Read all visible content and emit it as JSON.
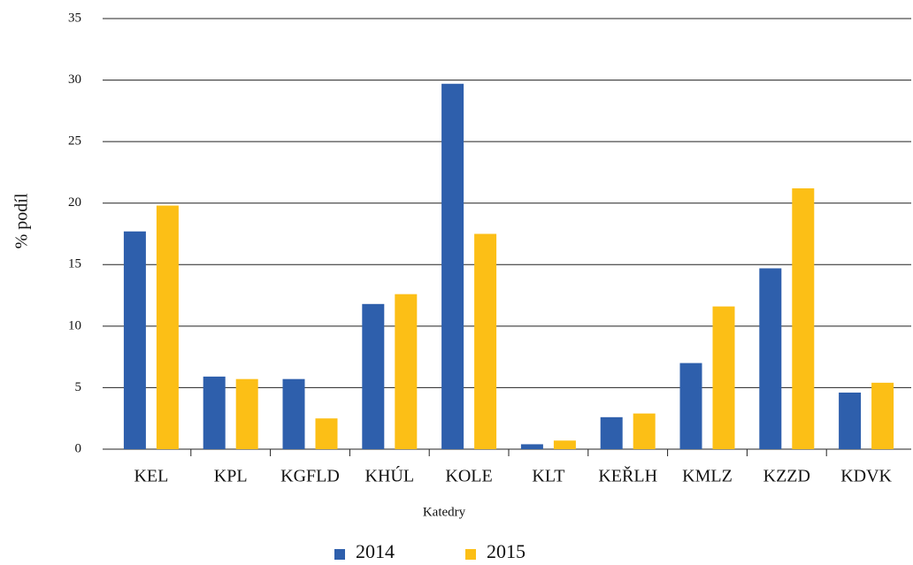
{
  "chart_data": {
    "type": "bar",
    "x_label": "Katedry",
    "y_label": "% podíl",
    "categories": [
      "KEL",
      "KPL",
      "KGFLD",
      "KHÚL",
      "KOLE",
      "KLT",
      "KEŘLH",
      "KMLZ",
      "KZZD",
      "KDVK"
    ],
    "series": [
      {
        "name": "2014",
        "color": "#2e5fac",
        "values": [
          17.7,
          5.9,
          5.7,
          11.8,
          29.7,
          0.4,
          2.6,
          7.0,
          14.7,
          4.6
        ]
      },
      {
        "name": "2015",
        "color": "#fcbf16",
        "values": [
          19.8,
          5.7,
          2.5,
          12.6,
          17.5,
          0.7,
          2.9,
          11.6,
          21.2,
          5.4
        ]
      }
    ],
    "ylim": [
      0,
      35
    ],
    "yticks": [
      0,
      5,
      10,
      15,
      20,
      25,
      30,
      35
    ],
    "grid": true,
    "legend": "bottom"
  }
}
